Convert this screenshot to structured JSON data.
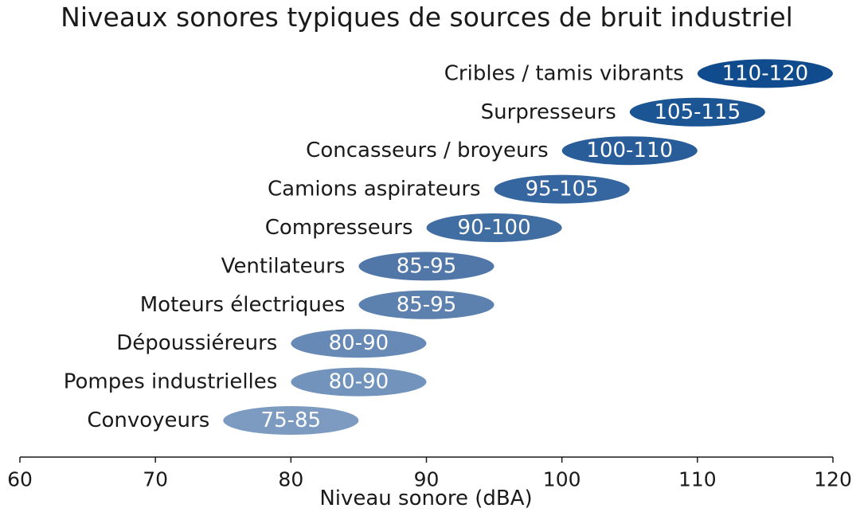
{
  "chart_data": {
    "type": "bar",
    "orientation": "horizontal-range",
    "title": "Niveaux sonores typiques de sources de bruit industriel",
    "xlabel": "Niveau sonore (dBA)",
    "ylabel": "",
    "xlim": [
      60,
      120
    ],
    "xticks": [
      60,
      70,
      80,
      90,
      100,
      110,
      120
    ],
    "grid": false,
    "legend": "none",
    "items": [
      {
        "category": "Convoyeurs",
        "low": 75,
        "high": 85,
        "label": "75-85",
        "color": "#7d9bc1"
      },
      {
        "category": "Pompes industrielles",
        "low": 80,
        "high": 90,
        "label": "80-90",
        "color": "#7193bc"
      },
      {
        "category": "Dépoussiéreurs",
        "low": 80,
        "high": 90,
        "label": "80-90",
        "color": "#6789b6"
      },
      {
        "category": "Moteurs électriques",
        "low": 85,
        "high": 95,
        "label": "85-95",
        "color": "#5d81ae"
      },
      {
        "category": "Ventilateurs",
        "low": 85,
        "high": 95,
        "label": "85-95",
        "color": "#5077a8"
      },
      {
        "category": "Compresseurs",
        "low": 90,
        "high": 100,
        "label": "90-100",
        "color": "#416ea2"
      },
      {
        "category": "Camions aspirateurs",
        "low": 95,
        "high": 105,
        "label": "95-105",
        "color": "#3566a0"
      },
      {
        "category": "Concasseurs / broyeurs",
        "low": 100,
        "high": 110,
        "label": "100-110",
        "color": "#285d99"
      },
      {
        "category": "Surpresseurs",
        "low": 105,
        "high": 115,
        "label": "105-115",
        "color": "#1c5593"
      },
      {
        "category": "Cribles / tamis vibrants",
        "low": 110,
        "high": 120,
        "label": "110-120",
        "color": "#0f4b8d"
      }
    ]
  }
}
